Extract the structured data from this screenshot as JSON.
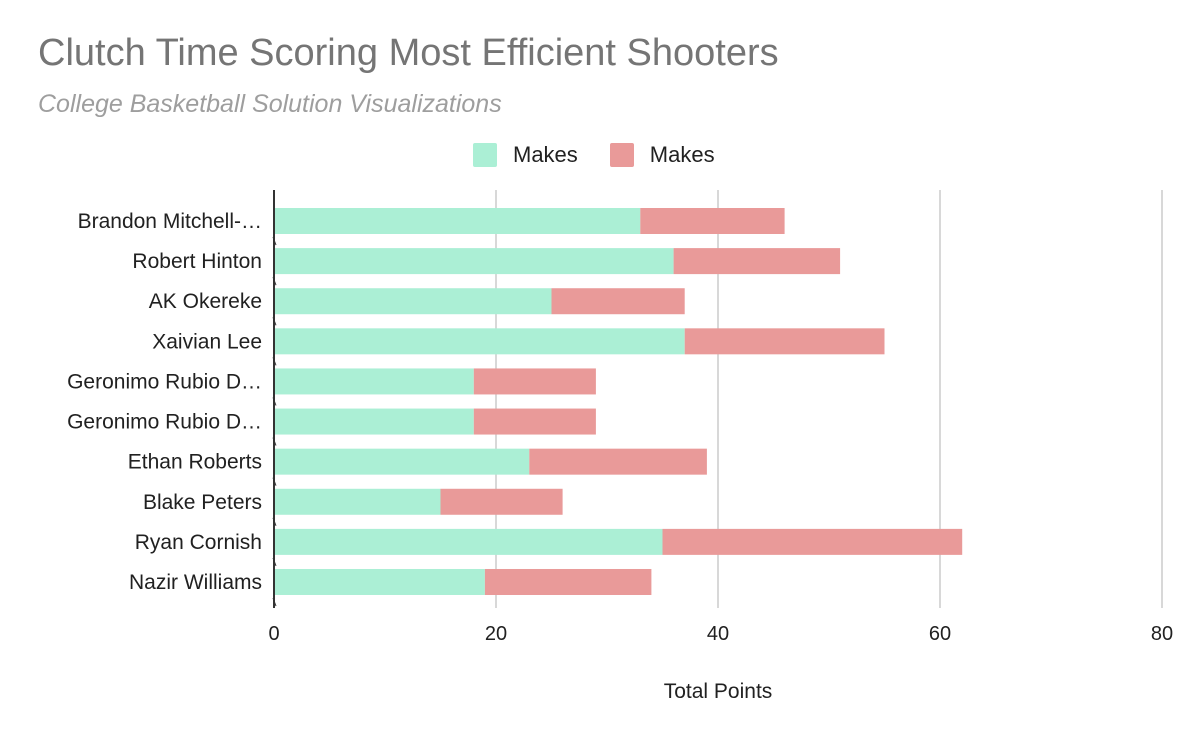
{
  "chart_data": {
    "type": "bar",
    "orientation": "horizontal",
    "stacked": true,
    "title": "Clutch Time Scoring Most Efficient Shooters",
    "subtitle": "College Basketball Solution Visualizations",
    "xlabel": "Total Points",
    "ylabel": "",
    "xlim": [
      0,
      80
    ],
    "xticks": [
      "0",
      "20",
      "40",
      "60",
      "80"
    ],
    "grid": true,
    "legend_position": "top",
    "categories": [
      "Brandon Mitchell-…",
      "Robert Hinton",
      "AK Okereke",
      "Xaivian Lee",
      "Geronimo Rubio D…",
      "Geronimo Rubio D…",
      "Ethan Roberts",
      "Blake Peters",
      "Ryan Cornish",
      "Nazir Williams"
    ],
    "series": [
      {
        "name": "Makes",
        "color": "#abefd5",
        "values": [
          33,
          36,
          25,
          37,
          18,
          18,
          23,
          15,
          35,
          19
        ]
      },
      {
        "name": "Makes",
        "color": "#e99a99",
        "values": [
          13,
          15,
          12,
          18,
          11,
          11,
          16,
          11,
          27,
          15
        ]
      }
    ]
  }
}
